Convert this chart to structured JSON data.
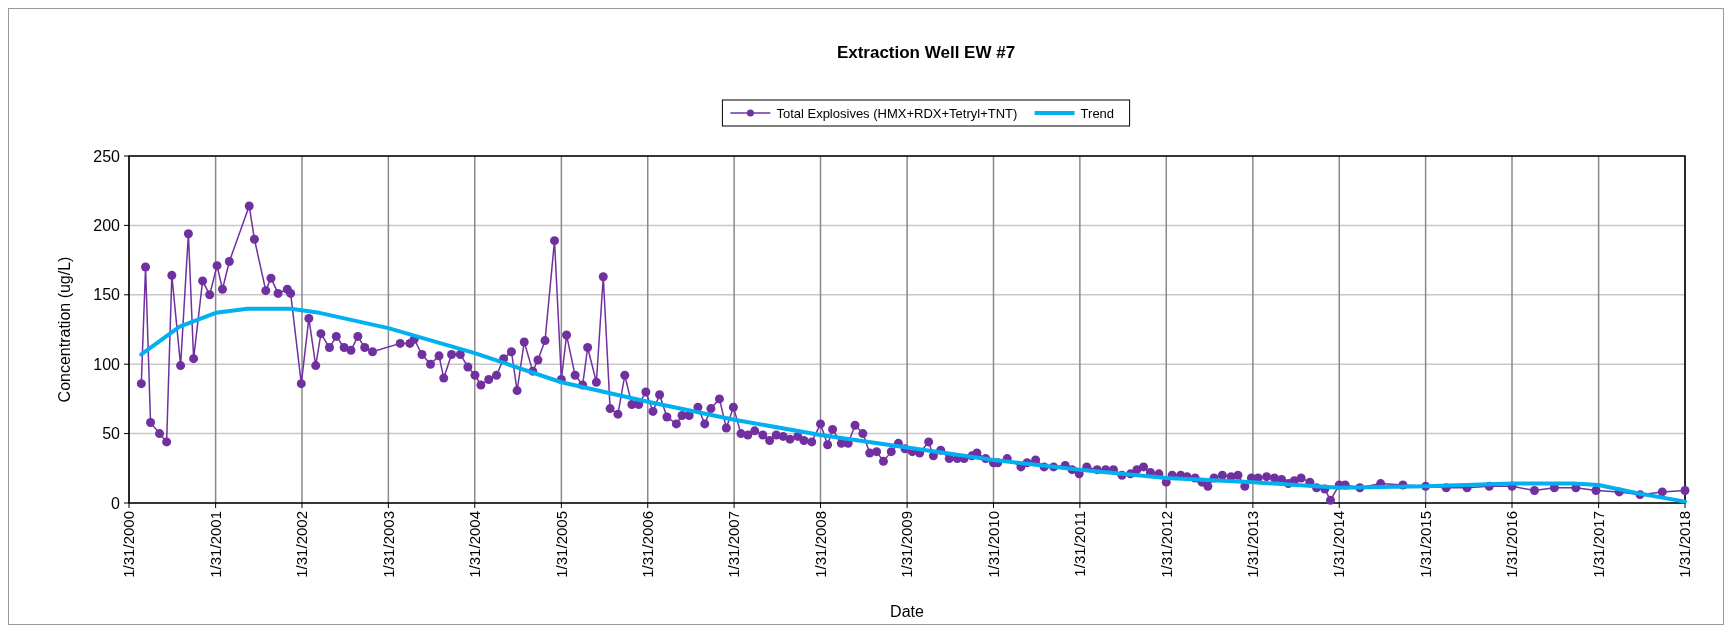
{
  "chart_data": {
    "type": "line",
    "title": "Extraction Well EW #7",
    "xlabel": "Date",
    "ylabel": "Concentration (ug/L)",
    "xlim": [
      "2000-01-31",
      "2018-01-31"
    ],
    "xticks": [
      {
        "value": "2000-01-31",
        "label": "1/31/2000"
      },
      {
        "value": "2001-01-31",
        "label": "1/31/2001"
      },
      {
        "value": "2002-01-31",
        "label": "1/31/2002"
      },
      {
        "value": "2003-01-31",
        "label": "1/31/2003"
      },
      {
        "value": "2004-01-31",
        "label": "1/31/2004"
      },
      {
        "value": "2005-01-31",
        "label": "1/31/2005"
      },
      {
        "value": "2006-01-31",
        "label": "1/31/2006"
      },
      {
        "value": "2007-01-31",
        "label": "1/31/2007"
      },
      {
        "value": "2008-01-31",
        "label": "1/31/2008"
      },
      {
        "value": "2009-01-31",
        "label": "1/31/2009"
      },
      {
        "value": "2010-01-31",
        "label": "1/31/2010"
      },
      {
        "value": "2011-01-31",
        "label": "1/31/2011"
      },
      {
        "value": "2012-01-31",
        "label": "1/31/2012"
      },
      {
        "value": "2013-01-31",
        "label": "1/31/2013"
      },
      {
        "value": "2014-01-31",
        "label": "1/31/2014"
      },
      {
        "value": "2015-01-31",
        "label": "1/31/2015"
      },
      {
        "value": "2016-01-31",
        "label": "1/31/2016"
      },
      {
        "value": "2017-01-31",
        "label": "1/31/2017"
      },
      {
        "value": "2018-01-31",
        "label": "1/31/2018"
      }
    ],
    "ylim": [
      0,
      250
    ],
    "yticks": [
      0,
      50,
      100,
      150,
      200,
      250
    ],
    "grid": true,
    "legend": "top",
    "marker": "circle",
    "series": [
      {
        "name": "Total Explosives (HMX+RDX+Tetryl+TNT)",
        "color": "#7030a0",
        "x": [
          "2000-03-23",
          "2000-04-10",
          "2000-05-01",
          "2000-06-08",
          "2000-07-08",
          "2000-07-30",
          "2000-09-05",
          "2000-10-08",
          "2000-10-30",
          "2000-12-07",
          "2001-01-06",
          "2001-02-06",
          "2001-03-01",
          "2001-03-30",
          "2001-06-22",
          "2001-07-14",
          "2001-08-31",
          "2001-09-22",
          "2001-10-22",
          "2001-11-30",
          "2001-12-14",
          "2002-01-28",
          "2002-03-01",
          "2002-03-30",
          "2002-04-21",
          "2002-05-27",
          "2002-06-25",
          "2002-07-28",
          "2002-08-26",
          "2002-09-24",
          "2002-10-23",
          "2002-11-25",
          "2003-03-22",
          "2003-05-02",
          "2003-05-20",
          "2003-06-22",
          "2003-07-28",
          "2003-09-02",
          "2003-09-22",
          "2003-10-25",
          "2003-12-01",
          "2004-01-02",
          "2004-02-01",
          "2004-02-26",
          "2004-03-30",
          "2004-05-02",
          "2004-06-01",
          "2004-07-04",
          "2004-07-28",
          "2004-08-27",
          "2004-10-02",
          "2004-10-24",
          "2004-11-23",
          "2005-01-02",
          "2005-01-31",
          "2005-02-22",
          "2005-03-30",
          "2005-05-01",
          "2005-05-22",
          "2005-06-28",
          "2005-07-27",
          "2005-08-25",
          "2005-09-27",
          "2005-10-26",
          "2005-11-25",
          "2005-12-24",
          "2006-01-23",
          "2006-02-22",
          "2006-03-22",
          "2006-04-22",
          "2006-06-01",
          "2006-06-25",
          "2006-07-25",
          "2006-08-31",
          "2006-09-29",
          "2006-10-25",
          "2006-11-30",
          "2006-12-29",
          "2007-01-28",
          "2007-03-01",
          "2007-03-30",
          "2007-04-28",
          "2007-06-01",
          "2007-06-30",
          "2007-07-28",
          "2007-08-26",
          "2007-09-24",
          "2007-10-27",
          "2007-11-22",
          "2007-12-25",
          "2008-01-31",
          "2008-03-01",
          "2008-03-22",
          "2008-04-28",
          "2008-05-27",
          "2008-06-25",
          "2008-07-28",
          "2008-08-26",
          "2008-09-24",
          "2008-10-23",
          "2008-11-25",
          "2008-12-25",
          "2009-01-22",
          "2009-02-22",
          "2009-03-25",
          "2009-05-02",
          "2009-05-22",
          "2009-06-22",
          "2009-07-28",
          "2009-08-31",
          "2009-09-29",
          "2009-11-01",
          "2009-11-22",
          "2009-12-29",
          "2010-01-31",
          "2010-02-18",
          "2010-03-30",
          "2010-05-27",
          "2010-06-22",
          "2010-07-28",
          "2010-09-02",
          "2010-10-12",
          "2010-11-30",
          "2010-12-29",
          "2011-01-28",
          "2011-03-01",
          "2011-04-14",
          "2011-05-20",
          "2011-06-22",
          "2011-07-28",
          "2011-09-02",
          "2011-09-29",
          "2011-10-27",
          "2011-11-25",
          "2011-12-31",
          "2012-01-31",
          "2012-02-25",
          "2012-04-01",
          "2012-04-28",
          "2012-06-01",
          "2012-06-30",
          "2012-07-25",
          "2012-08-20",
          "2012-09-24",
          "2012-10-31",
          "2012-11-29",
          "2012-12-28",
          "2013-01-25",
          "2013-02-22",
          "2013-03-30",
          "2013-05-02",
          "2013-06-01",
          "2013-06-30",
          "2013-07-25",
          "2013-08-23",
          "2013-09-29",
          "2013-10-27",
          "2013-12-01",
          "2013-12-25",
          "2014-01-31",
          "2014-02-25",
          "2014-04-28",
          "2014-07-25",
          "2014-10-27",
          "2015-01-31",
          "2015-04-28",
          "2015-07-25",
          "2015-10-27",
          "2016-01-31",
          "2016-05-05",
          "2016-07-28",
          "2016-10-27",
          "2017-01-20",
          "2017-04-28",
          "2017-07-25",
          "2017-10-27",
          "2018-01-31"
        ],
        "values": [
          86,
          170,
          58,
          50,
          44,
          164,
          99,
          194,
          104,
          160,
          150,
          171,
          154,
          174,
          214,
          190,
          153,
          162,
          151,
          154,
          151,
          86,
          133,
          99,
          122,
          112,
          120,
          112,
          110,
          120,
          112,
          109,
          115,
          115,
          118,
          107,
          100,
          106,
          90,
          107,
          107,
          98,
          92,
          85,
          89,
          92,
          104,
          109,
          81,
          116,
          95,
          103,
          117,
          189,
          89,
          121,
          92,
          85,
          112,
          87,
          163,
          68,
          64,
          92,
          71,
          71,
          80,
          66,
          78,
          62,
          57,
          63,
          63,
          69,
          57,
          68,
          75,
          54,
          69,
          50,
          49,
          52,
          49,
          45,
          49,
          48,
          46,
          48,
          45,
          44,
          57,
          42,
          53,
          43,
          43,
          56,
          50,
          36,
          37,
          30,
          37,
          43,
          39,
          37,
          36,
          44,
          34,
          38,
          32,
          32,
          32,
          34,
          36,
          32,
          29,
          29,
          32,
          26,
          29,
          31,
          26,
          26,
          27,
          24,
          21,
          26,
          24,
          24,
          24,
          20,
          21,
          24,
          26,
          22,
          21,
          15,
          20,
          20,
          19,
          18,
          15,
          12,
          18,
          20,
          19,
          20,
          12,
          18,
          18,
          19,
          18,
          17,
          14,
          16,
          18,
          15,
          11,
          10,
          2,
          13,
          13,
          11,
          14,
          13,
          12,
          11,
          11,
          12,
          12,
          9,
          11,
          11,
          9,
          8,
          6,
          8,
          9
        ]
      },
      {
        "name": "Trend",
        "color": "#00b0f0",
        "marker": "none",
        "x": [
          "2000-03-23",
          "2000-09-01",
          "2001-02-01",
          "2001-06-15",
          "2001-12-15",
          "2002-04-15",
          "2003-01-31",
          "2004-01-31",
          "2005-01-31",
          "2006-01-31",
          "2007-01-31",
          "2008-01-31",
          "2009-01-31",
          "2010-01-31",
          "2011-01-31",
          "2012-01-31",
          "2013-01-31",
          "2014-01-31",
          "2015-01-31",
          "2016-01-31",
          "2016-10-15",
          "2017-01-31",
          "2017-07-15",
          "2018-01-31"
        ],
        "values": [
          107,
          127,
          137,
          140,
          140,
          137,
          126,
          108,
          87,
          73,
          60,
          49,
          40,
          31,
          24,
          18,
          15,
          11,
          12,
          14,
          14,
          13,
          7,
          1
        ]
      }
    ]
  }
}
